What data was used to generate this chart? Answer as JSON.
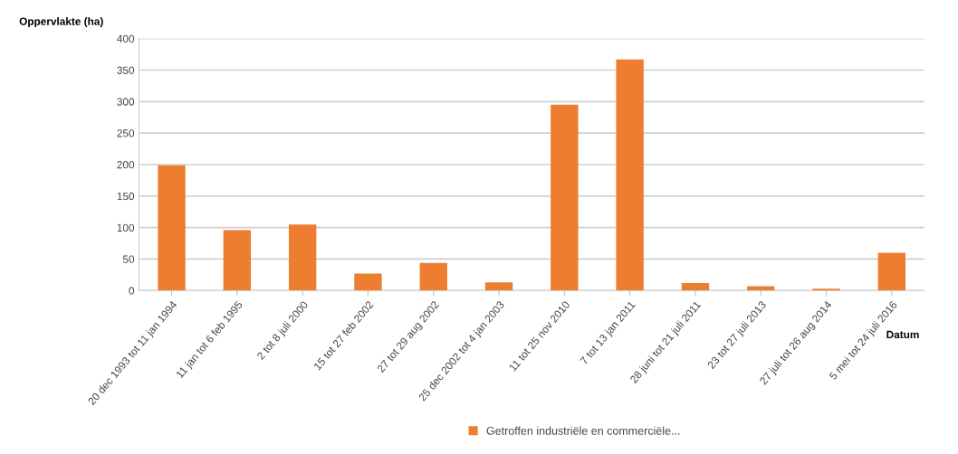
{
  "chart_data": {
    "type": "bar",
    "ylabel": "Oppervlakte (ha)",
    "xlabel": "Datum",
    "categories": [
      "20 dec 1993 tot 11 jan 1994",
      "11 jan tot 6 feb 1995",
      "2 tot 8 juli 2000",
      "15 tot 27 feb 2002",
      "27 tot 29 aug 2002",
      "25 dec 2002 tot 4 jan 2003",
      "11 tot 25 nov 2010",
      "7 tot 13 jan 2011",
      "28 juni tot 21 juli 2011",
      "23 tot 27 juli 2013",
      "27 juli tot 26 aug 2014",
      "5 mei tot 24 juli 2016"
    ],
    "series": [
      {
        "name": "Getroffen industriële en commerciële...",
        "color": "#ed7d31",
        "values": [
          199,
          96,
          105,
          27,
          44,
          13,
          295,
          367,
          12,
          7,
          3,
          60
        ]
      }
    ],
    "ylim": [
      0,
      400
    ],
    "yticks": [
      0,
      50,
      100,
      150,
      200,
      250,
      300,
      350,
      400
    ],
    "grid": "y",
    "legend": "bottom"
  }
}
